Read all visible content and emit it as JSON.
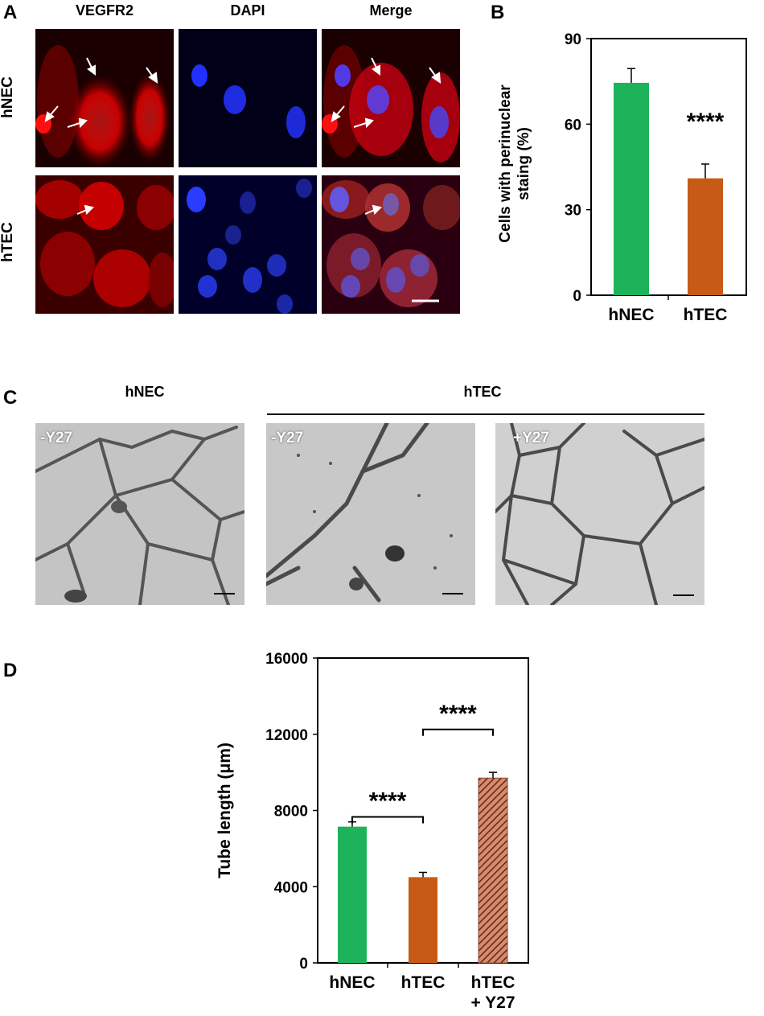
{
  "panel_labels": {
    "a": "A",
    "b": "B",
    "c": "C",
    "d": "D"
  },
  "panel_a": {
    "columns": [
      "VEGFR2",
      "DAPI",
      "Merge"
    ],
    "rows": [
      "hNEC",
      "hTEC"
    ]
  },
  "panel_c": {
    "col_headers": [
      "hNEC",
      "hTEC"
    ],
    "image_labels": [
      "-Y27",
      "-Y27",
      "+Y27"
    ]
  },
  "colors": {
    "hNEC": "#1db35a",
    "hTEC": "#c85a17",
    "hTEC_Y27": "#8a4a3a"
  },
  "chart_data": [
    {
      "type": "bar",
      "panel": "B",
      "categories": [
        "hNEC",
        "hTEC"
      ],
      "values": [
        74.5,
        41
      ],
      "errors": [
        5,
        5
      ],
      "ylabel": "Cells with perinuclear staing (%)",
      "ylim": [
        0,
        90
      ],
      "yticks": [
        "0",
        "30",
        "60",
        "90"
      ],
      "annotation": "****"
    },
    {
      "type": "bar",
      "panel": "D",
      "categories": [
        "hNEC",
        "hTEC",
        "hTEC + Y27"
      ],
      "category_lines": [
        [
          "hNEC"
        ],
        [
          "hTEC"
        ],
        [
          "hTEC",
          "+ Y27"
        ]
      ],
      "values": [
        7150,
        4500,
        9700
      ],
      "errors": [
        250,
        250,
        300
      ],
      "ylabel": "Tube length (μm)",
      "ylim": [
        0,
        16000
      ],
      "yticks": [
        "0",
        "4000",
        "8000",
        "12000",
        "16000"
      ],
      "annotations": [
        "****",
        "****"
      ]
    }
  ]
}
